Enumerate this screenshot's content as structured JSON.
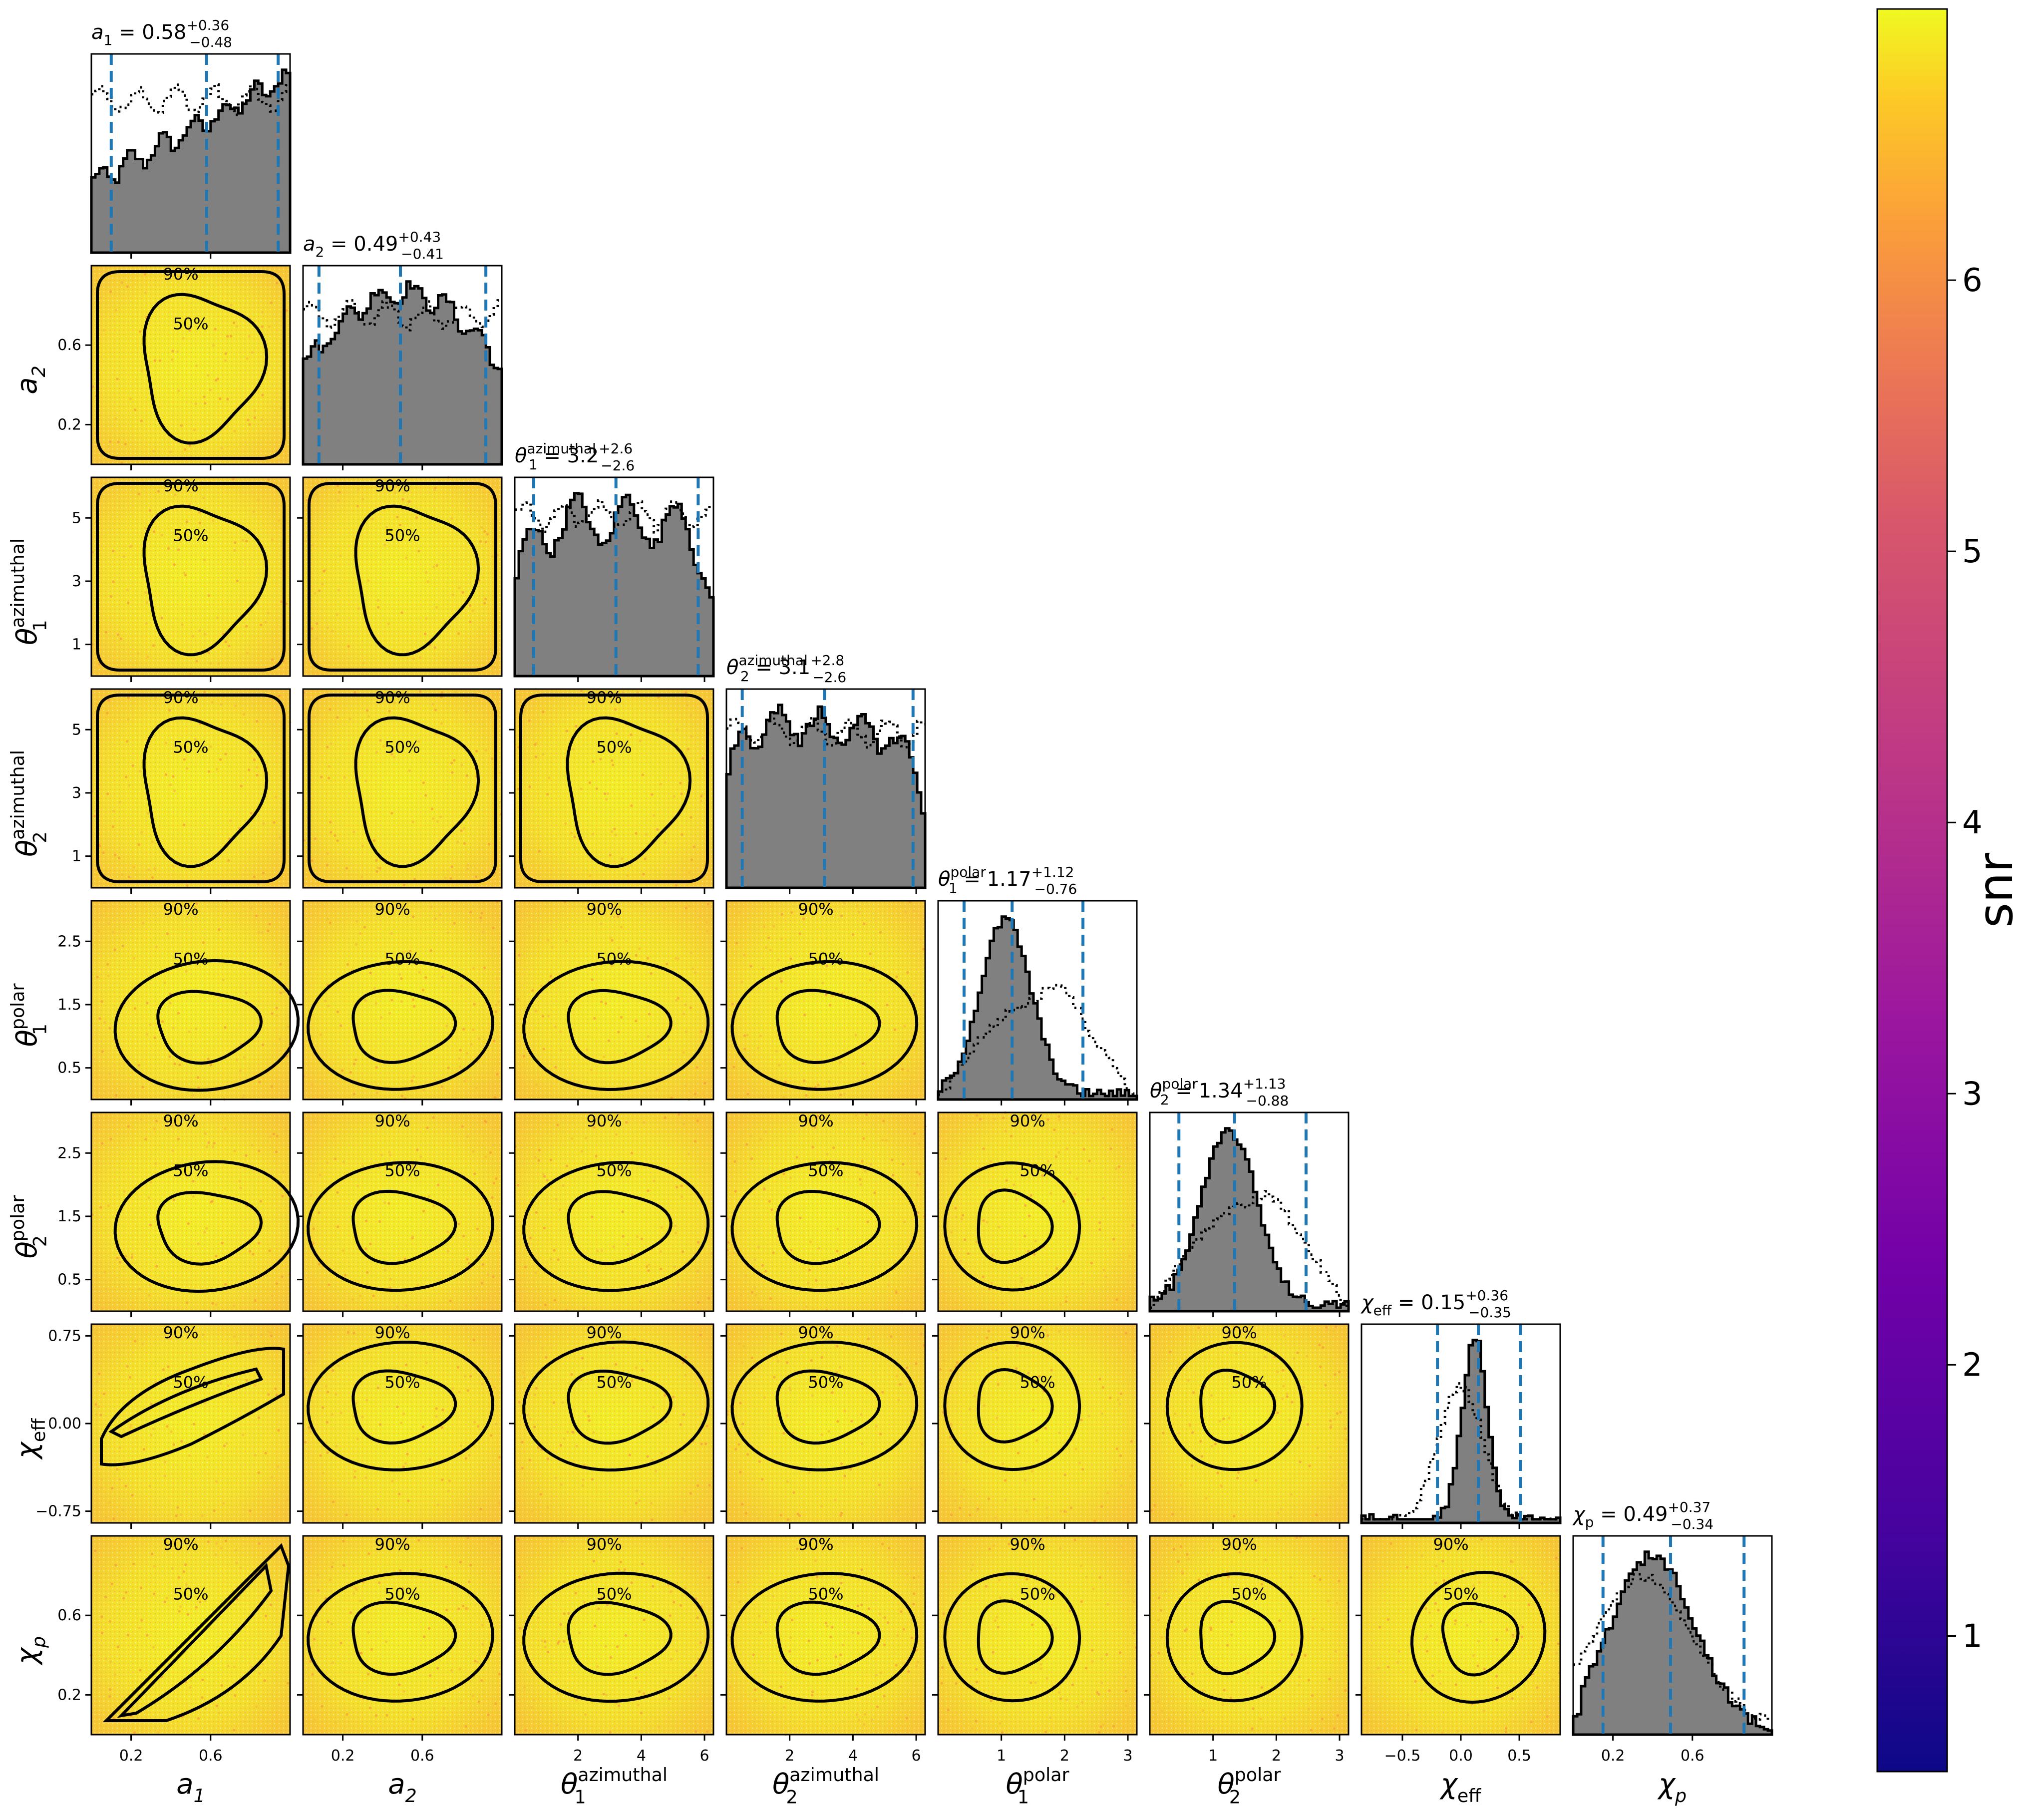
{
  "chart_data": {
    "type": "scatter",
    "description_kind": "corner",
    "params": [
      {
        "key": "a_1",
        "label_base": "a",
        "label_sub": "1",
        "label_sup": "",
        "range": [
          0.0,
          1.0
        ],
        "ticks": [
          0.2,
          0.6
        ],
        "median": 0.58,
        "plus": "+0.36",
        "minus": "−0.48",
        "title_value": "0.58"
      },
      {
        "key": "a_2",
        "label_base": "a",
        "label_sub": "2",
        "label_sup": "",
        "range": [
          0.0,
          1.0
        ],
        "ticks": [
          0.2,
          0.6
        ],
        "median": 0.49,
        "plus": "+0.43",
        "minus": "−0.41",
        "title_value": "0.49"
      },
      {
        "key": "theta_1_azimuthal",
        "label_base": "θ",
        "label_sub": "1",
        "label_sup": "azimuthal",
        "range": [
          0.0,
          6.283
        ],
        "ticks": [
          2,
          4,
          6
        ],
        "yticks": [
          1,
          3,
          5
        ],
        "median": 3.2,
        "plus": "+2.6",
        "minus": "−2.6",
        "title_value": "3.2"
      },
      {
        "key": "theta_2_azimuthal",
        "label_base": "θ",
        "label_sub": "2",
        "label_sup": "azimuthal",
        "range": [
          0.0,
          6.283
        ],
        "ticks": [
          2,
          4,
          6
        ],
        "yticks": [
          1,
          3,
          5
        ],
        "median": 3.1,
        "plus": "+2.8",
        "minus": "−2.6",
        "title_value": "3.1"
      },
      {
        "key": "theta_1_polar",
        "label_base": "θ",
        "label_sub": "1",
        "label_sup": "polar",
        "range": [
          0.0,
          3.1416
        ],
        "ticks": [
          1,
          2,
          3
        ],
        "yticks": [
          0.5,
          1.5,
          2.5
        ],
        "median": 1.17,
        "plus": "+1.12",
        "minus": "−0.76",
        "title_value": "1.17"
      },
      {
        "key": "theta_2_polar",
        "label_base": "θ",
        "label_sub": "2",
        "label_sup": "polar",
        "range": [
          0.0,
          3.1416
        ],
        "ticks": [
          1,
          2,
          3
        ],
        "yticks": [
          0.5,
          1.5,
          2.5
        ],
        "median": 1.34,
        "plus": "+1.13",
        "minus": "−0.88",
        "title_value": "1.34"
      },
      {
        "key": "chi_eff",
        "label_base": "χ",
        "label_sub": "eff",
        "label_sup": "",
        "range": [
          -0.85,
          0.85
        ],
        "ticks": [
          -0.5,
          0.0,
          0.5
        ],
        "yticks": [
          -0.75,
          0.0,
          0.75
        ],
        "median": 0.15,
        "plus": "+0.36",
        "minus": "−0.35",
        "title_value": "0.15"
      },
      {
        "key": "chi_p",
        "label_base": "χ",
        "label_sub": "p",
        "label_sup": "",
        "range": [
          0.0,
          1.0
        ],
        "ticks": [
          0.2,
          0.6
        ],
        "median": 0.49,
        "plus": "+0.37",
        "minus": "−0.34",
        "title_value": "0.49"
      }
    ],
    "tick_text": {
      "a_1": [
        "0.2",
        "0.6"
      ],
      "a_2": [
        "0.2",
        "0.6"
      ],
      "theta_1_azimuthal_x": [
        "2",
        "4",
        "6"
      ],
      "theta_1_azimuthal_y": [
        "1",
        "3",
        "5"
      ],
      "theta_2_azimuthal_x": [
        "2",
        "4",
        "6"
      ],
      "theta_2_azimuthal_y": [
        "1",
        "3",
        "5"
      ],
      "theta_1_polar_x": [
        "1",
        "2",
        "3"
      ],
      "theta_1_polar_y": [
        "0.5",
        "1.5",
        "2.5"
      ],
      "theta_2_polar_x": [
        "1",
        "2",
        "3"
      ],
      "theta_2_polar_y": [
        "0.5",
        "1.5",
        "2.5"
      ],
      "chi_eff_x": [
        "−0.5",
        "0.0",
        "0.5"
      ],
      "chi_eff_y": [
        "−0.75",
        "0.00",
        "0.75"
      ],
      "chi_p": [
        "0.2",
        "0.6"
      ]
    },
    "contour_levels": [
      "50%",
      "90%"
    ],
    "colorbar": {
      "label": "snr",
      "range": [
        0.5,
        7.0
      ],
      "ticks": [
        1,
        2,
        3,
        4,
        5,
        6
      ],
      "tick_text": [
        "1",
        "2",
        "3",
        "4",
        "5",
        "6"
      ],
      "colormap": "plasma"
    },
    "grid": false,
    "colors": {
      "hist_fill": "#808080",
      "median_line": "#1f77b4",
      "contour": "#000000",
      "prior": "#000000"
    }
  }
}
